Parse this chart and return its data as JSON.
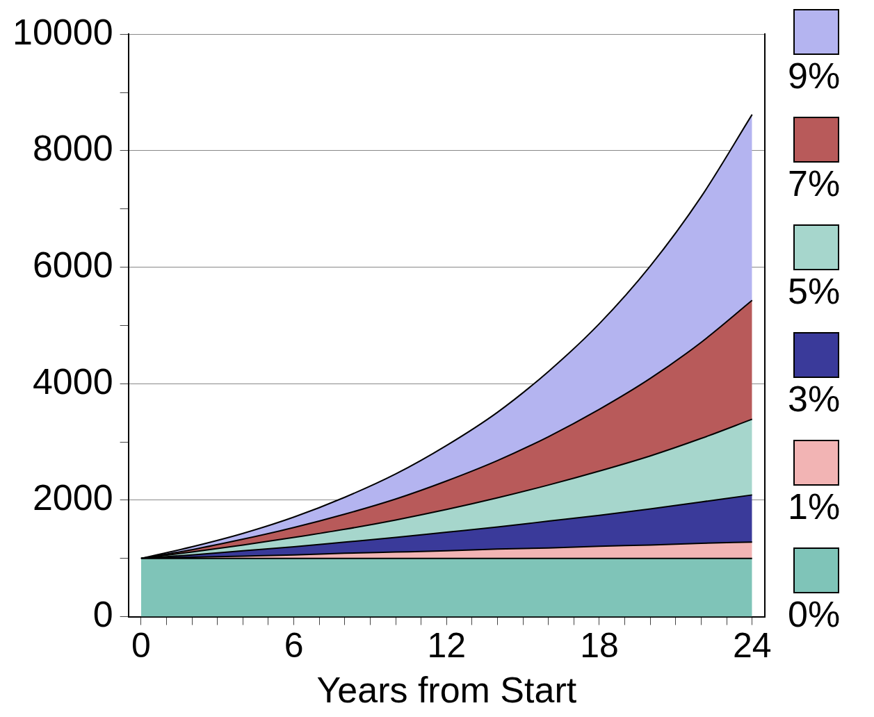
{
  "chart_data": {
    "type": "area",
    "xlabel": "Years from Start",
    "x": [
      0,
      2,
      4,
      6,
      8,
      10,
      12,
      14,
      16,
      18,
      20,
      22,
      24
    ],
    "xlim": [
      -0.5,
      24.5
    ],
    "xticks": [
      0,
      {
        "value": 1,
        "label": null
      },
      {
        "value": 2,
        "label": null
      },
      {
        "value": 3,
        "label": null
      },
      {
        "value": 4,
        "label": null
      },
      {
        "value": 5,
        "label": null
      },
      6,
      {
        "value": 7,
        "label": null
      },
      {
        "value": 8,
        "label": null
      },
      {
        "value": 9,
        "label": null
      },
      {
        "value": 10,
        "label": null
      },
      {
        "value": 11,
        "label": null
      },
      12,
      {
        "value": 13,
        "label": null
      },
      {
        "value": 14,
        "label": null
      },
      {
        "value": 15,
        "label": null
      },
      {
        "value": 16,
        "label": null
      },
      {
        "value": 17,
        "label": null
      },
      18,
      {
        "value": 19,
        "label": null
      },
      {
        "value": 20,
        "label": null
      },
      {
        "value": 21,
        "label": null
      },
      {
        "value": 22,
        "label": null
      },
      {
        "value": 23,
        "label": null
      },
      24
    ],
    "ylim": [
      0,
      10000
    ],
    "yticks": [
      0,
      {
        "value": 1000,
        "label": null
      },
      2000,
      {
        "value": 3000,
        "label": null
      },
      4000,
      {
        "value": 5000,
        "label": null
      },
      6000,
      {
        "value": 7000,
        "label": null
      },
      8000,
      {
        "value": 9000,
        "label": null
      },
      10000
    ],
    "grid": "y",
    "legend": "right",
    "series": [
      {
        "name": "0%",
        "color": "#7fc4b8",
        "values": [
          1000,
          1000,
          1000,
          1000,
          1000,
          1000,
          1000,
          1000,
          1000,
          1000,
          1000,
          1000,
          1000
        ]
      },
      {
        "name": "1%",
        "color": "#f2b4b4",
        "values": [
          1000,
          1020,
          1040,
          1060,
          1090,
          1110,
          1130,
          1160,
          1180,
          1210,
          1230,
          1260,
          1280
        ]
      },
      {
        "name": "3%",
        "color": "#3a3a9a",
        "values": [
          1000,
          1060,
          1130,
          1200,
          1280,
          1360,
          1450,
          1540,
          1640,
          1740,
          1850,
          1970,
          2090
        ]
      },
      {
        "name": "5%",
        "color": "#a6d6cc",
        "values": [
          1000,
          1110,
          1230,
          1360,
          1500,
          1660,
          1840,
          2040,
          2260,
          2500,
          2760,
          3060,
          3390
        ]
      },
      {
        "name": "7%",
        "color": "#b85a5a",
        "values": [
          1000,
          1150,
          1330,
          1530,
          1760,
          2020,
          2330,
          2680,
          3090,
          3560,
          4090,
          4710,
          5430
        ]
      },
      {
        "name": "9%",
        "color": "#b4b4f0",
        "values": [
          1000,
          1200,
          1430,
          1710,
          2050,
          2450,
          2940,
          3510,
          4210,
          5030,
          6020,
          7210,
          8620
        ]
      }
    ]
  }
}
